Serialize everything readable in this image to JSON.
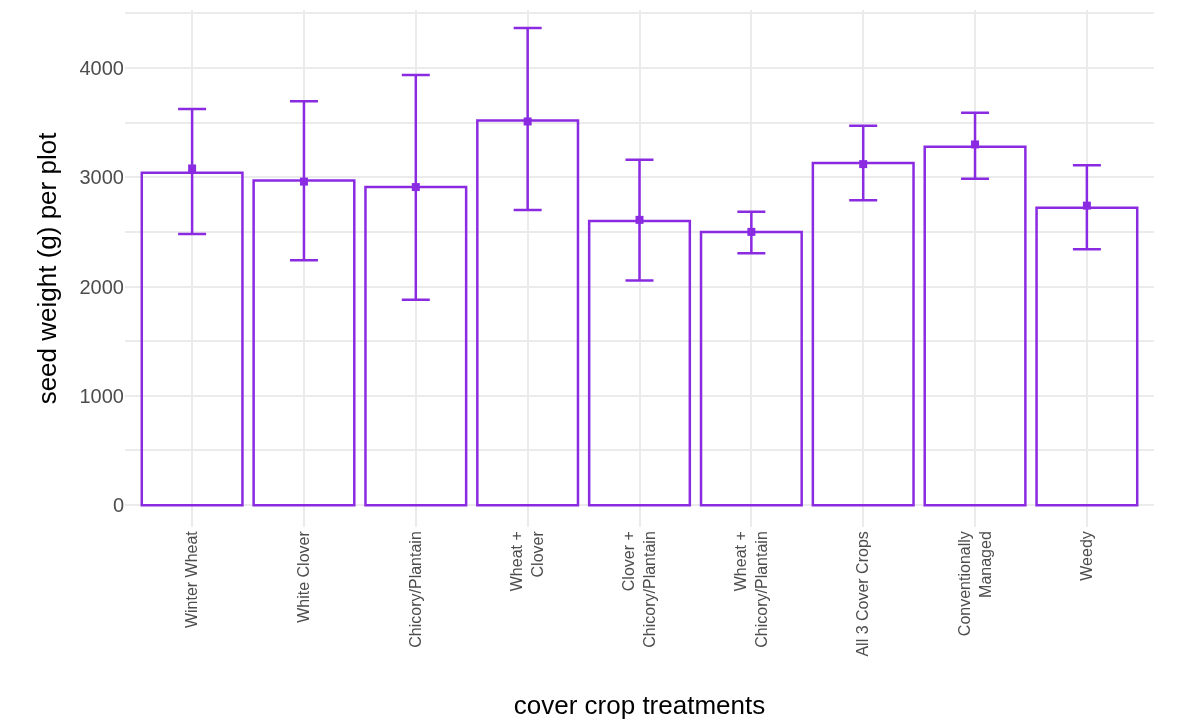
{
  "chart_data": {
    "type": "bar",
    "xlabel": "cover crop treatments",
    "ylabel": "seed weight (g) per plot",
    "categories": [
      "Winter Wheat",
      "White Clover",
      "Chicory/Plantain",
      "Wheat +\nClover",
      "Clover +\nChicory/Plantain",
      "Wheat +\nChicory/Plantain",
      "All 3 Cover Crops",
      "Conventionally\nManaged",
      "Weedy"
    ],
    "series": [
      {
        "color": "#8a2be2",
        "values": [
          3040,
          2970,
          2910,
          3520,
          2600,
          2500,
          3130,
          3280,
          2720
        ]
      },
      {
        "type": "scatter",
        "color": "#8a2be2",
        "values": [
          3080,
          2960,
          2910,
          3510,
          2610,
          2500,
          3120,
          3300,
          2740
        ],
        "errors": [
          [
            2480,
            3625
          ],
          [
            2240,
            3695
          ],
          [
            1880,
            3935
          ],
          [
            2700,
            4365
          ],
          [
            2055,
            3160
          ],
          [
            2305,
            2685
          ],
          [
            2790,
            3470
          ],
          [
            2985,
            3590
          ],
          [
            2340,
            3110
          ]
        ]
      }
    ],
    "ylim": [
      -200,
      4530
    ],
    "yticks": [
      0,
      {
        "value": 500,
        "label": null
      },
      1000,
      {
        "value": 1500,
        "label": null
      },
      2000,
      {
        "value": 2500,
        "label": null
      },
      3000,
      {
        "value": 3500,
        "label": null
      },
      4000,
      {
        "value": 4500,
        "label": null
      }
    ],
    "grid": true,
    "marker": "square"
  }
}
